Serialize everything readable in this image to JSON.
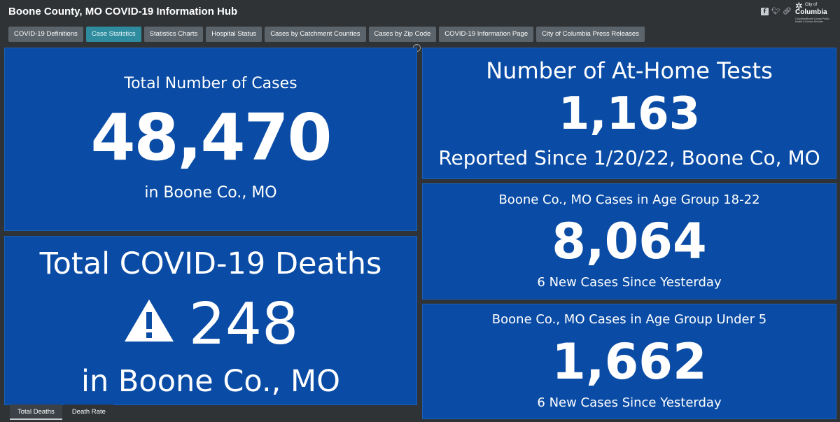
{
  "app": {
    "title": "Boone County, MO COVID-19 Information Hub",
    "logo": {
      "city_of": "City of",
      "name": "Columbia",
      "subtitle": "Columbia/Boone County Public Health & Human Services"
    }
  },
  "social": {
    "icons": [
      "facebook-icon",
      "twitter-icon",
      "link-icon"
    ]
  },
  "tabs": [
    {
      "label": "COVID-19 Definitions",
      "active": false
    },
    {
      "label": "Case Statistics",
      "active": true
    },
    {
      "label": "Statistics Charts",
      "active": false
    },
    {
      "label": "Hospital Status",
      "active": false
    },
    {
      "label": "Cases by Catchment Counties",
      "active": false
    },
    {
      "label": "Cases by Zip Code",
      "active": false
    },
    {
      "label": "COVID-19 Information Page",
      "active": false
    },
    {
      "label": "City of Columbia Press Releases",
      "active": false
    }
  ],
  "panels": {
    "total_cases": {
      "heading": "Total Number of Cases",
      "value": "48,470",
      "caption": "in Boone Co., MO"
    },
    "deaths": {
      "heading": "Total COVID-19 Deaths",
      "value": "248",
      "caption": "in Boone Co., MO",
      "icon": "warning-icon"
    },
    "home_tests": {
      "heading": "Number of At-Home Tests",
      "value": "1,163",
      "caption": "Reported Since 1/20/22, Boone Co, MO"
    },
    "age_18_22": {
      "heading": "Boone Co., MO Cases in Age Group 18-22",
      "value": "8,064",
      "caption": "6 New Cases Since Yesterday"
    },
    "age_under_5": {
      "heading": "Boone Co., MO Cases in Age Group Under 5",
      "value": "1,662",
      "caption": "6 New Cases Since Yesterday"
    }
  },
  "subtabs": [
    {
      "label": "Total Deaths",
      "active": true
    },
    {
      "label": "Death Rate",
      "active": false
    }
  ],
  "colors": {
    "panel_bg": "#0a4ca5",
    "page_bg": "#2f3336",
    "tab_bg": "#5b646b",
    "tab_active": "#2e8c9e"
  }
}
